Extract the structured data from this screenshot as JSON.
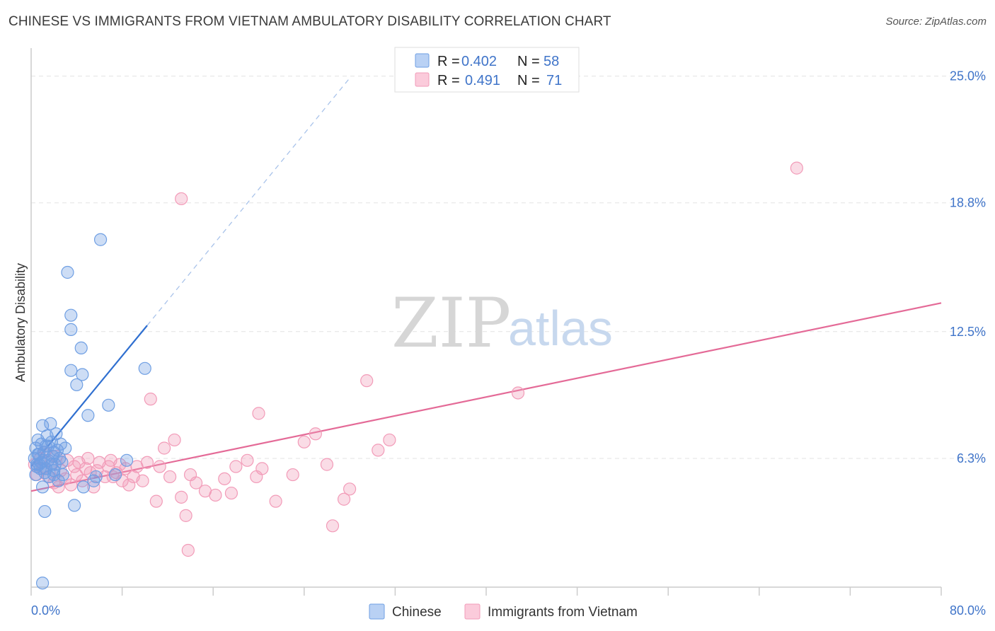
{
  "title": "CHINESE VS IMMIGRANTS FROM VIETNAM AMBULATORY DISABILITY CORRELATION CHART",
  "source": "Source: ZipAtlas.com",
  "watermark": {
    "zip": "ZIP",
    "atlas": "atlas"
  },
  "colors": {
    "blue": "#6f9fe3",
    "blue_line": "#2f6fd0",
    "pink": "#f29bb8",
    "pink_line": "#e46a97",
    "tick": "#3f74c9"
  },
  "chart_data": {
    "type": "scatter",
    "title": "CHINESE VS IMMIGRANTS FROM VIETNAM AMBULATORY DISABILITY CORRELATION CHART",
    "xlabel": "",
    "ylabel": "Ambulatory Disability",
    "xlim": [
      0,
      80
    ],
    "ylim": [
      0,
      26.3
    ],
    "x_tick_labels": [
      "0.0%",
      "80.0%"
    ],
    "y_ticks": [
      6.3,
      12.5,
      18.8,
      25.0
    ],
    "y_tick_labels": [
      "6.3%",
      "12.5%",
      "18.8%",
      "25.0%"
    ],
    "legend": [
      {
        "r_label": "R =",
        "r_value": "0.402",
        "n_label": "N =",
        "n_value": "58"
      },
      {
        "r_label": "R =",
        "r_value": "0.491",
        "n_label": "N =",
        "n_value": "71"
      }
    ],
    "series": [
      {
        "name": "Chinese",
        "trend": {
          "x0": 0,
          "y0": 5.9,
          "x1": 10.2,
          "y1": 12.8,
          "dash_x1": 28.0,
          "dash_y1": 24.9
        },
        "points": [
          [
            0.3,
            6.3
          ],
          [
            0.4,
            6.8
          ],
          [
            0.5,
            6.0
          ],
          [
            0.6,
            7.2
          ],
          [
            0.7,
            6.5
          ],
          [
            0.8,
            5.8
          ],
          [
            0.9,
            6.1
          ],
          [
            1.0,
            7.9
          ],
          [
            1.1,
            6.6
          ],
          [
            1.2,
            5.6
          ],
          [
            1.3,
            6.9
          ],
          [
            1.4,
            7.4
          ],
          [
            1.5,
            6.2
          ],
          [
            1.6,
            5.4
          ],
          [
            1.7,
            8.0
          ],
          [
            1.8,
            7.1
          ],
          [
            1.9,
            6.4
          ],
          [
            2.0,
            5.7
          ],
          [
            2.1,
            6.0
          ],
          [
            2.2,
            7.5
          ],
          [
            2.3,
            6.7
          ],
          [
            2.4,
            5.2
          ],
          [
            2.5,
            6.3
          ],
          [
            2.6,
            7.0
          ],
          [
            2.7,
            6.1
          ],
          [
            2.8,
            5.5
          ],
          [
            0.5,
            5.9
          ],
          [
            0.6,
            6.5
          ],
          [
            0.9,
            7.0
          ],
          [
            1.1,
            6.2
          ],
          [
            1.3,
            5.8
          ],
          [
            1.5,
            6.9
          ],
          [
            1.8,
            6.0
          ],
          [
            2.0,
            6.6
          ],
          [
            0.4,
            5.5
          ],
          [
            0.7,
            6.0
          ],
          [
            1.0,
            4.9
          ],
          [
            1.2,
            3.7
          ],
          [
            2.0,
            5.5
          ],
          [
            3.0,
            6.8
          ],
          [
            3.2,
            15.4
          ],
          [
            3.5,
            13.3
          ],
          [
            3.5,
            12.6
          ],
          [
            3.5,
            10.6
          ],
          [
            3.8,
            4.0
          ],
          [
            4.0,
            9.9
          ],
          [
            4.4,
            11.7
          ],
          [
            4.5,
            10.4
          ],
          [
            5.0,
            8.4
          ],
          [
            5.5,
            5.2
          ],
          [
            4.6,
            4.9
          ],
          [
            5.7,
            5.4
          ],
          [
            6.1,
            17.0
          ],
          [
            6.8,
            8.9
          ],
          [
            7.4,
            5.5
          ],
          [
            8.4,
            6.2
          ],
          [
            10.0,
            10.7
          ],
          [
            1.0,
            0.2
          ]
        ]
      },
      {
        "name": "Immigrants from Vietnam",
        "trend": {
          "x0": 0,
          "y0": 4.7,
          "x1": 80,
          "y1": 13.9
        },
        "points": [
          [
            0.3,
            6.0
          ],
          [
            0.5,
            5.5
          ],
          [
            0.8,
            6.3
          ],
          [
            1.0,
            5.8
          ],
          [
            1.2,
            6.6
          ],
          [
            1.5,
            5.4
          ],
          [
            1.8,
            6.0
          ],
          [
            2.0,
            5.1
          ],
          [
            2.2,
            6.4
          ],
          [
            2.4,
            4.9
          ],
          [
            2.6,
            5.7
          ],
          [
            3.0,
            5.3
          ],
          [
            3.2,
            6.2
          ],
          [
            3.5,
            5.0
          ],
          [
            3.8,
            5.9
          ],
          [
            4.0,
            5.5
          ],
          [
            4.2,
            6.1
          ],
          [
            4.5,
            5.2
          ],
          [
            4.8,
            5.8
          ],
          [
            5.0,
            6.3
          ],
          [
            5.2,
            5.6
          ],
          [
            5.5,
            4.9
          ],
          [
            5.8,
            5.7
          ],
          [
            6.0,
            6.1
          ],
          [
            6.5,
            5.4
          ],
          [
            6.8,
            5.9
          ],
          [
            7.0,
            6.2
          ],
          [
            7.2,
            5.4
          ],
          [
            7.5,
            5.6
          ],
          [
            7.8,
            6.0
          ],
          [
            8.0,
            5.2
          ],
          [
            8.3,
            5.8
          ],
          [
            8.6,
            5.0
          ],
          [
            9.0,
            5.4
          ],
          [
            9.3,
            5.9
          ],
          [
            9.8,
            5.2
          ],
          [
            10.2,
            6.1
          ],
          [
            10.5,
            9.2
          ],
          [
            11.0,
            4.2
          ],
          [
            11.3,
            5.9
          ],
          [
            11.7,
            6.8
          ],
          [
            12.2,
            5.4
          ],
          [
            12.6,
            7.2
          ],
          [
            13.2,
            4.4
          ],
          [
            13.6,
            3.5
          ],
          [
            13.8,
            1.8
          ],
          [
            14.0,
            5.5
          ],
          [
            14.5,
            5.1
          ],
          [
            15.3,
            4.7
          ],
          [
            16.2,
            4.5
          ],
          [
            17.0,
            5.3
          ],
          [
            17.6,
            4.6
          ],
          [
            18.0,
            5.9
          ],
          [
            19.0,
            6.2
          ],
          [
            19.8,
            5.4
          ],
          [
            20.3,
            5.8
          ],
          [
            21.5,
            4.2
          ],
          [
            23.0,
            5.5
          ],
          [
            24.0,
            7.1
          ],
          [
            25.0,
            7.5
          ],
          [
            26.0,
            6.0
          ],
          [
            26.5,
            3.0
          ],
          [
            27.5,
            4.3
          ],
          [
            28.0,
            4.8
          ],
          [
            29.5,
            10.1
          ],
          [
            30.5,
            6.7
          ],
          [
            31.5,
            7.2
          ],
          [
            42.8,
            9.5
          ],
          [
            67.3,
            20.5
          ],
          [
            13.2,
            19.0
          ],
          [
            20.0,
            8.5
          ]
        ]
      }
    ]
  }
}
